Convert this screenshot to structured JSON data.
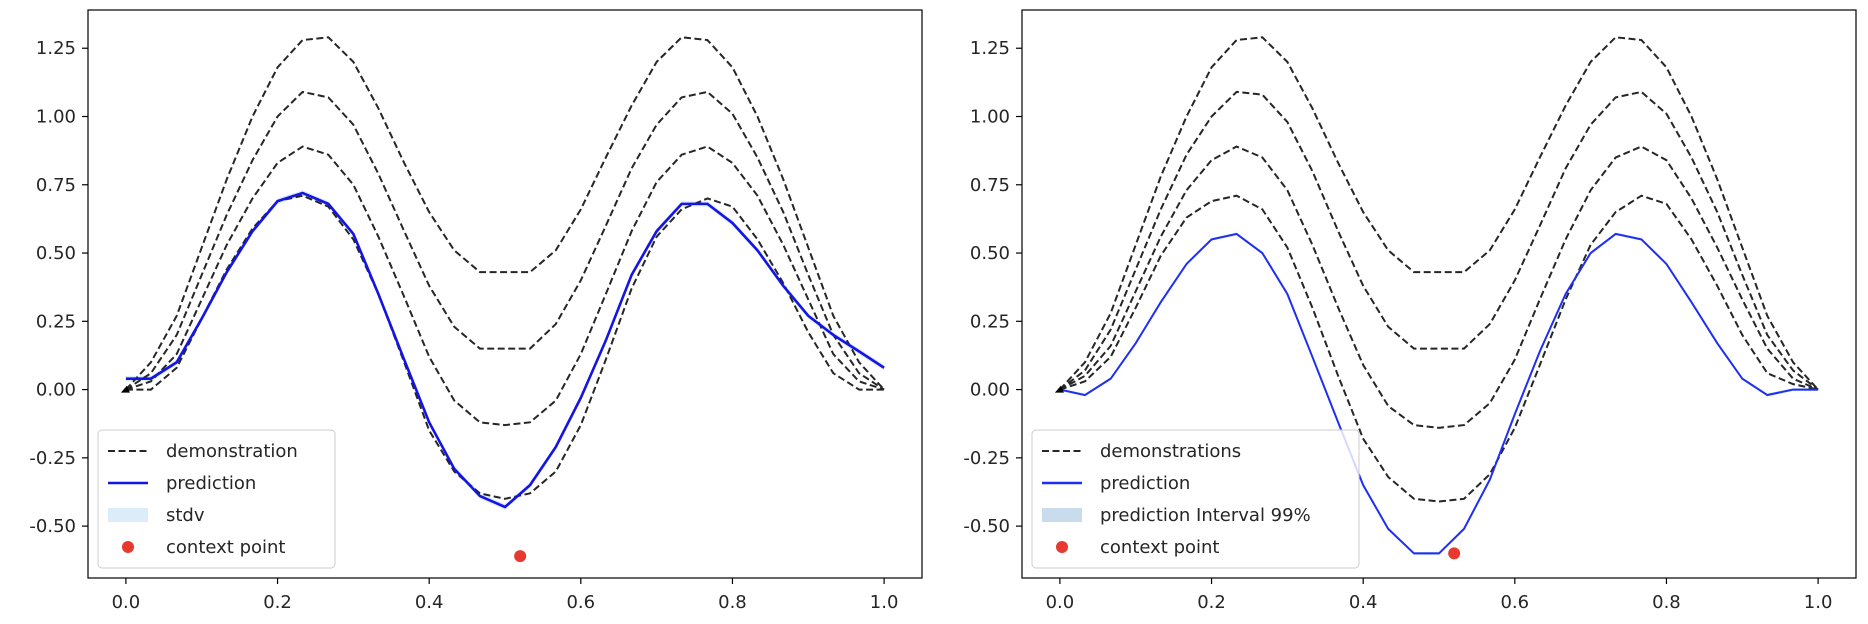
{
  "chart_data": [
    {
      "type": "line",
      "xlim": [
        -0.05,
        1.05
      ],
      "ylim": [
        -0.69,
        1.39
      ],
      "x_ticks": [
        "0.0",
        "0.2",
        "0.4",
        "0.6",
        "0.8",
        "1.0"
      ],
      "y_ticks": [
        "-0.50",
        "-0.25",
        "0.00",
        "0.25",
        "0.50",
        "0.75",
        "1.00",
        "1.25"
      ],
      "legend_position": "lower-left",
      "legend": [
        "demonstration",
        "prediction",
        "stdv",
        "context point"
      ],
      "colors": {
        "demonstration": "#262626",
        "prediction": "#1414e6",
        "band": "#dcecf9",
        "context": "#e8392f"
      },
      "demonstrations": [
        {
          "x": [
            0.0,
            0.033,
            0.067,
            0.1,
            0.133,
            0.167,
            0.2,
            0.233,
            0.267,
            0.3,
            0.333,
            0.367,
            0.4,
            0.433,
            0.467,
            0.5,
            0.533,
            0.567,
            0.6,
            0.633,
            0.667,
            0.7,
            0.733,
            0.767,
            0.8,
            0.833,
            0.867,
            0.9,
            0.933,
            0.967,
            1.0
          ],
          "y": [
            0.0,
            0.0,
            0.08,
            0.26,
            0.44,
            0.59,
            0.69,
            0.71,
            0.67,
            0.55,
            0.35,
            0.1,
            -0.15,
            -0.3,
            -0.38,
            -0.4,
            -0.38,
            -0.3,
            -0.13,
            0.11,
            0.37,
            0.56,
            0.66,
            0.7,
            0.67,
            0.55,
            0.39,
            0.21,
            0.06,
            0.0,
            0.0
          ]
        },
        {
          "x": [
            0.0,
            0.033,
            0.067,
            0.1,
            0.133,
            0.167,
            0.2,
            0.233,
            0.267,
            0.3,
            0.333,
            0.367,
            0.4,
            0.433,
            0.467,
            0.5,
            0.533,
            0.567,
            0.6,
            0.633,
            0.667,
            0.7,
            0.733,
            0.767,
            0.8,
            0.833,
            0.867,
            0.9,
            0.933,
            0.967,
            1.0
          ],
          "y": [
            0.0,
            0.03,
            0.13,
            0.33,
            0.53,
            0.7,
            0.83,
            0.89,
            0.86,
            0.75,
            0.56,
            0.34,
            0.12,
            -0.04,
            -0.12,
            -0.13,
            -0.12,
            -0.04,
            0.13,
            0.35,
            0.58,
            0.76,
            0.86,
            0.89,
            0.83,
            0.71,
            0.53,
            0.33,
            0.13,
            0.03,
            0.0
          ]
        },
        {
          "x": [
            0.0,
            0.033,
            0.067,
            0.1,
            0.133,
            0.167,
            0.2,
            0.233,
            0.267,
            0.3,
            0.333,
            0.367,
            0.4,
            0.433,
            0.467,
            0.5,
            0.533,
            0.567,
            0.6,
            0.633,
            0.667,
            0.7,
            0.733,
            0.767,
            0.8,
            0.833,
            0.867,
            0.9,
            0.933,
            0.967,
            1.0
          ],
          "y": [
            0.0,
            0.06,
            0.2,
            0.42,
            0.64,
            0.84,
            1.0,
            1.09,
            1.07,
            0.97,
            0.79,
            0.58,
            0.38,
            0.23,
            0.15,
            0.15,
            0.15,
            0.24,
            0.4,
            0.6,
            0.81,
            0.97,
            1.07,
            1.09,
            1.01,
            0.85,
            0.65,
            0.42,
            0.2,
            0.06,
            0.0
          ]
        },
        {
          "x": [
            0.0,
            0.033,
            0.067,
            0.1,
            0.133,
            0.167,
            0.2,
            0.233,
            0.267,
            0.3,
            0.333,
            0.367,
            0.4,
            0.433,
            0.467,
            0.5,
            0.533,
            0.567,
            0.6,
            0.633,
            0.667,
            0.7,
            0.733,
            0.767,
            0.8,
            0.833,
            0.867,
            0.9,
            0.933,
            0.967,
            1.0
          ],
          "y": [
            0.0,
            0.1,
            0.27,
            0.52,
            0.77,
            1.0,
            1.18,
            1.28,
            1.29,
            1.2,
            1.03,
            0.83,
            0.65,
            0.51,
            0.43,
            0.43,
            0.43,
            0.51,
            0.66,
            0.85,
            1.04,
            1.2,
            1.29,
            1.28,
            1.18,
            1.0,
            0.77,
            0.52,
            0.27,
            0.1,
            0.0
          ]
        }
      ],
      "prediction": {
        "x": [
          0.0,
          0.033,
          0.067,
          0.1,
          0.133,
          0.167,
          0.2,
          0.233,
          0.267,
          0.3,
          0.333,
          0.367,
          0.4,
          0.433,
          0.467,
          0.5,
          0.533,
          0.567,
          0.6,
          0.633,
          0.667,
          0.7,
          0.733,
          0.767,
          0.8,
          0.833,
          0.867,
          0.9,
          0.933,
          0.967,
          1.0
        ],
        "y": [
          0.04,
          0.04,
          0.1,
          0.26,
          0.43,
          0.58,
          0.69,
          0.72,
          0.68,
          0.57,
          0.35,
          0.11,
          -0.12,
          -0.29,
          -0.39,
          -0.43,
          -0.35,
          -0.21,
          -0.03,
          0.18,
          0.42,
          0.58,
          0.68,
          0.68,
          0.61,
          0.51,
          0.38,
          0.27,
          0.2,
          0.14,
          0.08
        ]
      },
      "band": {
        "x": [
          0.0,
          0.033,
          0.067,
          0.1,
          0.133,
          0.167,
          0.2,
          0.233,
          0.267,
          0.3,
          0.333,
          0.367,
          0.4,
          0.433,
          0.467,
          0.5,
          0.533,
          0.567,
          0.6,
          0.633,
          0.667,
          0.7,
          0.733,
          0.767,
          0.8,
          0.833,
          0.867,
          0.9,
          0.933,
          0.967,
          1.0
        ],
        "lower": [
          0.03,
          0.03,
          0.09,
          0.25,
          0.42,
          0.57,
          0.68,
          0.71,
          0.67,
          0.56,
          0.34,
          0.1,
          -0.13,
          -0.3,
          -0.4,
          -0.44,
          -0.36,
          -0.22,
          -0.04,
          0.17,
          0.41,
          0.57,
          0.67,
          0.67,
          0.6,
          0.5,
          0.37,
          0.26,
          0.19,
          0.13,
          0.07
        ],
        "upper": [
          0.05,
          0.05,
          0.11,
          0.27,
          0.44,
          0.59,
          0.7,
          0.73,
          0.69,
          0.58,
          0.36,
          0.12,
          -0.11,
          -0.28,
          -0.38,
          -0.42,
          -0.34,
          -0.2,
          -0.02,
          0.19,
          0.43,
          0.59,
          0.69,
          0.69,
          0.62,
          0.52,
          0.39,
          0.28,
          0.21,
          0.15,
          0.09
        ]
      },
      "context_point": {
        "x": 0.52,
        "y": -0.61
      }
    },
    {
      "type": "line",
      "xlim": [
        -0.05,
        1.05
      ],
      "ylim": [
        -0.69,
        1.39
      ],
      "x_ticks": [
        "0.0",
        "0.2",
        "0.4",
        "0.6",
        "0.8",
        "1.0"
      ],
      "y_ticks": [
        "-0.50",
        "-0.25",
        "0.00",
        "0.25",
        "0.50",
        "0.75",
        "1.00",
        "1.25"
      ],
      "legend_position": "lower-left",
      "legend": [
        "demonstrations",
        "prediction",
        "prediction Interval 99%",
        "context point"
      ],
      "colors": {
        "demonstration": "#262626",
        "prediction": "#1f2ff2",
        "band": "#c9dcee",
        "context": "#e8392f"
      },
      "demonstrations": [
        {
          "x": [
            0.0,
            0.033,
            0.067,
            0.1,
            0.133,
            0.167,
            0.2,
            0.233,
            0.267,
            0.3,
            0.333,
            0.367,
            0.4,
            0.433,
            0.467,
            0.5,
            0.533,
            0.567,
            0.6,
            0.633,
            0.667,
            0.7,
            0.733,
            0.767,
            0.8,
            0.833,
            0.867,
            0.9,
            0.933,
            0.967,
            1.0
          ],
          "y": [
            0.0,
            0.03,
            0.12,
            0.3,
            0.49,
            0.63,
            0.69,
            0.71,
            0.66,
            0.52,
            0.3,
            0.05,
            -0.18,
            -0.32,
            -0.4,
            -0.41,
            -0.4,
            -0.31,
            -0.14,
            0.09,
            0.33,
            0.53,
            0.65,
            0.71,
            0.68,
            0.55,
            0.38,
            0.2,
            0.06,
            0.02,
            0.0
          ]
        },
        {
          "x": [
            0.0,
            0.033,
            0.067,
            0.1,
            0.133,
            0.167,
            0.2,
            0.233,
            0.267,
            0.3,
            0.333,
            0.367,
            0.4,
            0.433,
            0.467,
            0.5,
            0.533,
            0.567,
            0.6,
            0.633,
            0.667,
            0.7,
            0.733,
            0.767,
            0.8,
            0.833,
            0.867,
            0.9,
            0.933,
            0.967,
            1.0
          ],
          "y": [
            0.0,
            0.05,
            0.16,
            0.36,
            0.56,
            0.73,
            0.84,
            0.89,
            0.85,
            0.73,
            0.53,
            0.3,
            0.09,
            -0.06,
            -0.13,
            -0.14,
            -0.13,
            -0.05,
            0.11,
            0.33,
            0.55,
            0.73,
            0.85,
            0.89,
            0.84,
            0.7,
            0.52,
            0.33,
            0.15,
            0.04,
            0.0
          ]
        },
        {
          "x": [
            0.0,
            0.033,
            0.067,
            0.1,
            0.133,
            0.167,
            0.2,
            0.233,
            0.267,
            0.3,
            0.333,
            0.367,
            0.4,
            0.433,
            0.467,
            0.5,
            0.533,
            0.567,
            0.6,
            0.633,
            0.667,
            0.7,
            0.733,
            0.767,
            0.8,
            0.833,
            0.867,
            0.9,
            0.933,
            0.967,
            1.0
          ],
          "y": [
            0.0,
            0.07,
            0.22,
            0.44,
            0.66,
            0.86,
            1.0,
            1.09,
            1.08,
            0.98,
            0.8,
            0.58,
            0.38,
            0.23,
            0.15,
            0.15,
            0.15,
            0.24,
            0.4,
            0.6,
            0.81,
            0.97,
            1.07,
            1.09,
            1.01,
            0.85,
            0.65,
            0.42,
            0.2,
            0.07,
            0.0
          ]
        },
        {
          "x": [
            0.0,
            0.033,
            0.067,
            0.1,
            0.133,
            0.167,
            0.2,
            0.233,
            0.267,
            0.3,
            0.333,
            0.367,
            0.4,
            0.433,
            0.467,
            0.5,
            0.533,
            0.567,
            0.6,
            0.633,
            0.667,
            0.7,
            0.733,
            0.767,
            0.8,
            0.833,
            0.867,
            0.9,
            0.933,
            0.967,
            1.0
          ],
          "y": [
            0.0,
            0.1,
            0.28,
            0.53,
            0.78,
            1.0,
            1.18,
            1.28,
            1.29,
            1.2,
            1.03,
            0.83,
            0.65,
            0.51,
            0.43,
            0.43,
            0.43,
            0.51,
            0.66,
            0.85,
            1.04,
            1.2,
            1.29,
            1.28,
            1.18,
            1.0,
            0.77,
            0.52,
            0.27,
            0.1,
            0.0
          ]
        }
      ],
      "prediction": {
        "x": [
          0.0,
          0.033,
          0.067,
          0.1,
          0.133,
          0.167,
          0.2,
          0.233,
          0.267,
          0.3,
          0.333,
          0.367,
          0.4,
          0.433,
          0.467,
          0.5,
          0.533,
          0.567,
          0.6,
          0.633,
          0.667,
          0.7,
          0.733,
          0.767,
          0.8,
          0.833,
          0.867,
          0.9,
          0.933,
          0.967,
          1.0
        ],
        "y": [
          0.0,
          -0.02,
          0.04,
          0.17,
          0.32,
          0.46,
          0.55,
          0.57,
          0.5,
          0.35,
          0.12,
          -0.12,
          -0.35,
          -0.51,
          -0.6,
          -0.6,
          -0.51,
          -0.33,
          -0.09,
          0.14,
          0.35,
          0.5,
          0.57,
          0.55,
          0.46,
          0.32,
          0.17,
          0.04,
          -0.02,
          0.0,
          0.0
        ]
      },
      "band": {
        "x": [
          0.0,
          0.033,
          0.067,
          0.1,
          0.133,
          0.167,
          0.2,
          0.233,
          0.267,
          0.3,
          0.333,
          0.367,
          0.4,
          0.433,
          0.467,
          0.5,
          0.533,
          0.567,
          0.6,
          0.633,
          0.667,
          0.7,
          0.733,
          0.767,
          0.8,
          0.833,
          0.867,
          0.9,
          0.933,
          0.967,
          1.0
        ],
        "lower": [
          -0.005,
          -0.025,
          0.035,
          0.165,
          0.315,
          0.455,
          0.545,
          0.565,
          0.495,
          0.345,
          0.115,
          -0.125,
          -0.355,
          -0.515,
          -0.605,
          -0.605,
          -0.515,
          -0.335,
          -0.095,
          0.135,
          0.345,
          0.495,
          0.565,
          0.545,
          0.455,
          0.315,
          0.165,
          0.035,
          -0.025,
          -0.005,
          -0.005
        ],
        "upper": [
          0.005,
          -0.015,
          0.045,
          0.175,
          0.325,
          0.465,
          0.555,
          0.575,
          0.505,
          0.355,
          0.125,
          -0.115,
          -0.345,
          -0.505,
          -0.595,
          -0.595,
          -0.505,
          -0.325,
          -0.085,
          0.145,
          0.355,
          0.505,
          0.575,
          0.555,
          0.465,
          0.325,
          0.175,
          0.045,
          -0.015,
          0.005,
          0.005
        ]
      },
      "context_point": {
        "x": 0.52,
        "y": -0.6
      }
    }
  ]
}
